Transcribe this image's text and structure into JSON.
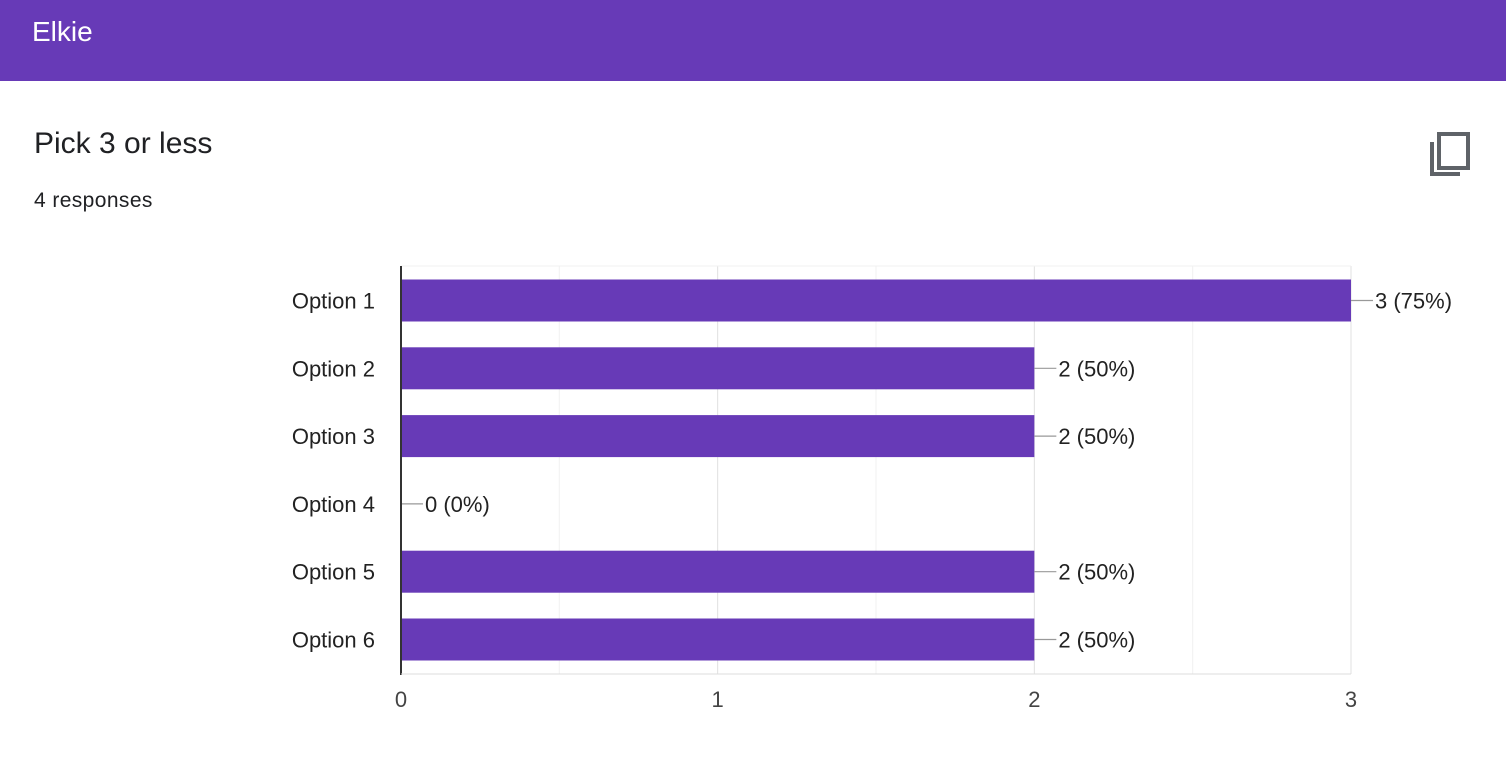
{
  "header": {
    "app_title": "Elkie"
  },
  "question": {
    "title": "Pick 3 or less",
    "responses": "4 responses"
  },
  "icons": {
    "copy": "copy-icon"
  },
  "colors": {
    "brand": "#673ab7",
    "bar": "#673ab7"
  },
  "chart_data": {
    "type": "bar",
    "orientation": "horizontal",
    "categories": [
      "Option 1",
      "Option 2",
      "Option 3",
      "Option 4",
      "Option 5",
      "Option 6"
    ],
    "values": [
      3,
      2,
      2,
      0,
      2,
      2
    ],
    "data_labels": [
      "3 (75%)",
      "2 (50%)",
      "2 (50%)",
      "0 (0%)",
      "2 (50%)",
      "2 (50%)"
    ],
    "xlim": [
      0,
      3
    ],
    "x_ticks": [
      0,
      1,
      2,
      3
    ],
    "grid": true,
    "title": "",
    "xlabel": "",
    "ylabel": ""
  }
}
